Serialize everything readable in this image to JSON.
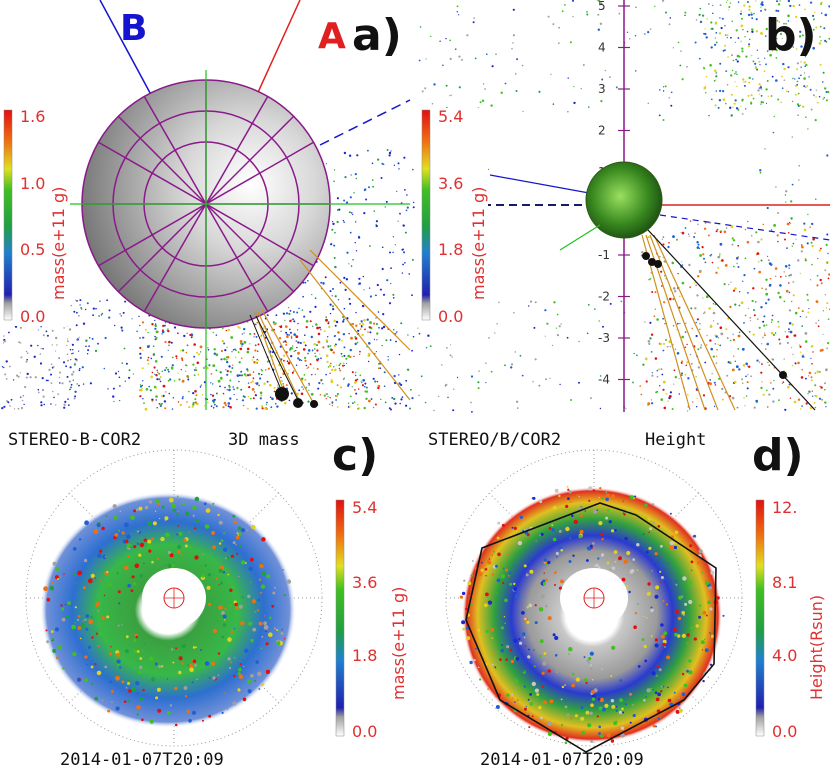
{
  "figure": {
    "panels": [
      {
        "id": "a",
        "letter": "a)",
        "view_labels": [
          "B",
          "A"
        ],
        "view_colors": [
          "#1515d0",
          "#e02020"
        ]
      },
      {
        "id": "b",
        "letter": "b)"
      },
      {
        "id": "c",
        "letter": "c)",
        "title_left": "STEREO-B-COR2",
        "title_right": "3D mass",
        "timestamp": "2014-01-07T20:09"
      },
      {
        "id": "d",
        "letter": "d)",
        "title_left": "STEREO/B/COR2",
        "title_right": "Height",
        "timestamp": "2014-01-07T20:09"
      }
    ]
  },
  "chart_data": [
    {
      "panel": "a",
      "type": "scatter",
      "title": "",
      "colorbar": {
        "label": "mass(e+11 g)",
        "ticks": [
          "1.6",
          "1.0",
          "0.5",
          "0.0"
        ],
        "range": [
          0.0,
          1.6
        ]
      }
    },
    {
      "panel": "b",
      "type": "scatter",
      "title": "",
      "colorbar": {
        "label": "mass(e+11 g)",
        "ticks": [
          "5.4",
          "3.6",
          "1.8",
          "0.0"
        ],
        "range": [
          0.0,
          5.4
        ]
      },
      "y_axis_ticks": [
        "5",
        "4",
        "3",
        "2",
        "1",
        "0",
        "-1",
        "-2",
        "-3",
        "-4"
      ]
    },
    {
      "panel": "c",
      "type": "heatmap",
      "title": "STEREO-B-COR2  3D mass",
      "colorbar": {
        "label": "mass(e+11 g)",
        "ticks": [
          "5.4",
          "3.6",
          "1.8",
          "0.0"
        ],
        "range": [
          0.0,
          5.4
        ]
      }
    },
    {
      "panel": "d",
      "type": "heatmap",
      "title": "STEREO/B/COR2  Height",
      "colorbar": {
        "label": "Height(Rsun)",
        "ticks": [
          "12.",
          "8.1",
          "4.0",
          "0.0"
        ],
        "range": [
          0.0,
          12.0
        ]
      }
    }
  ]
}
